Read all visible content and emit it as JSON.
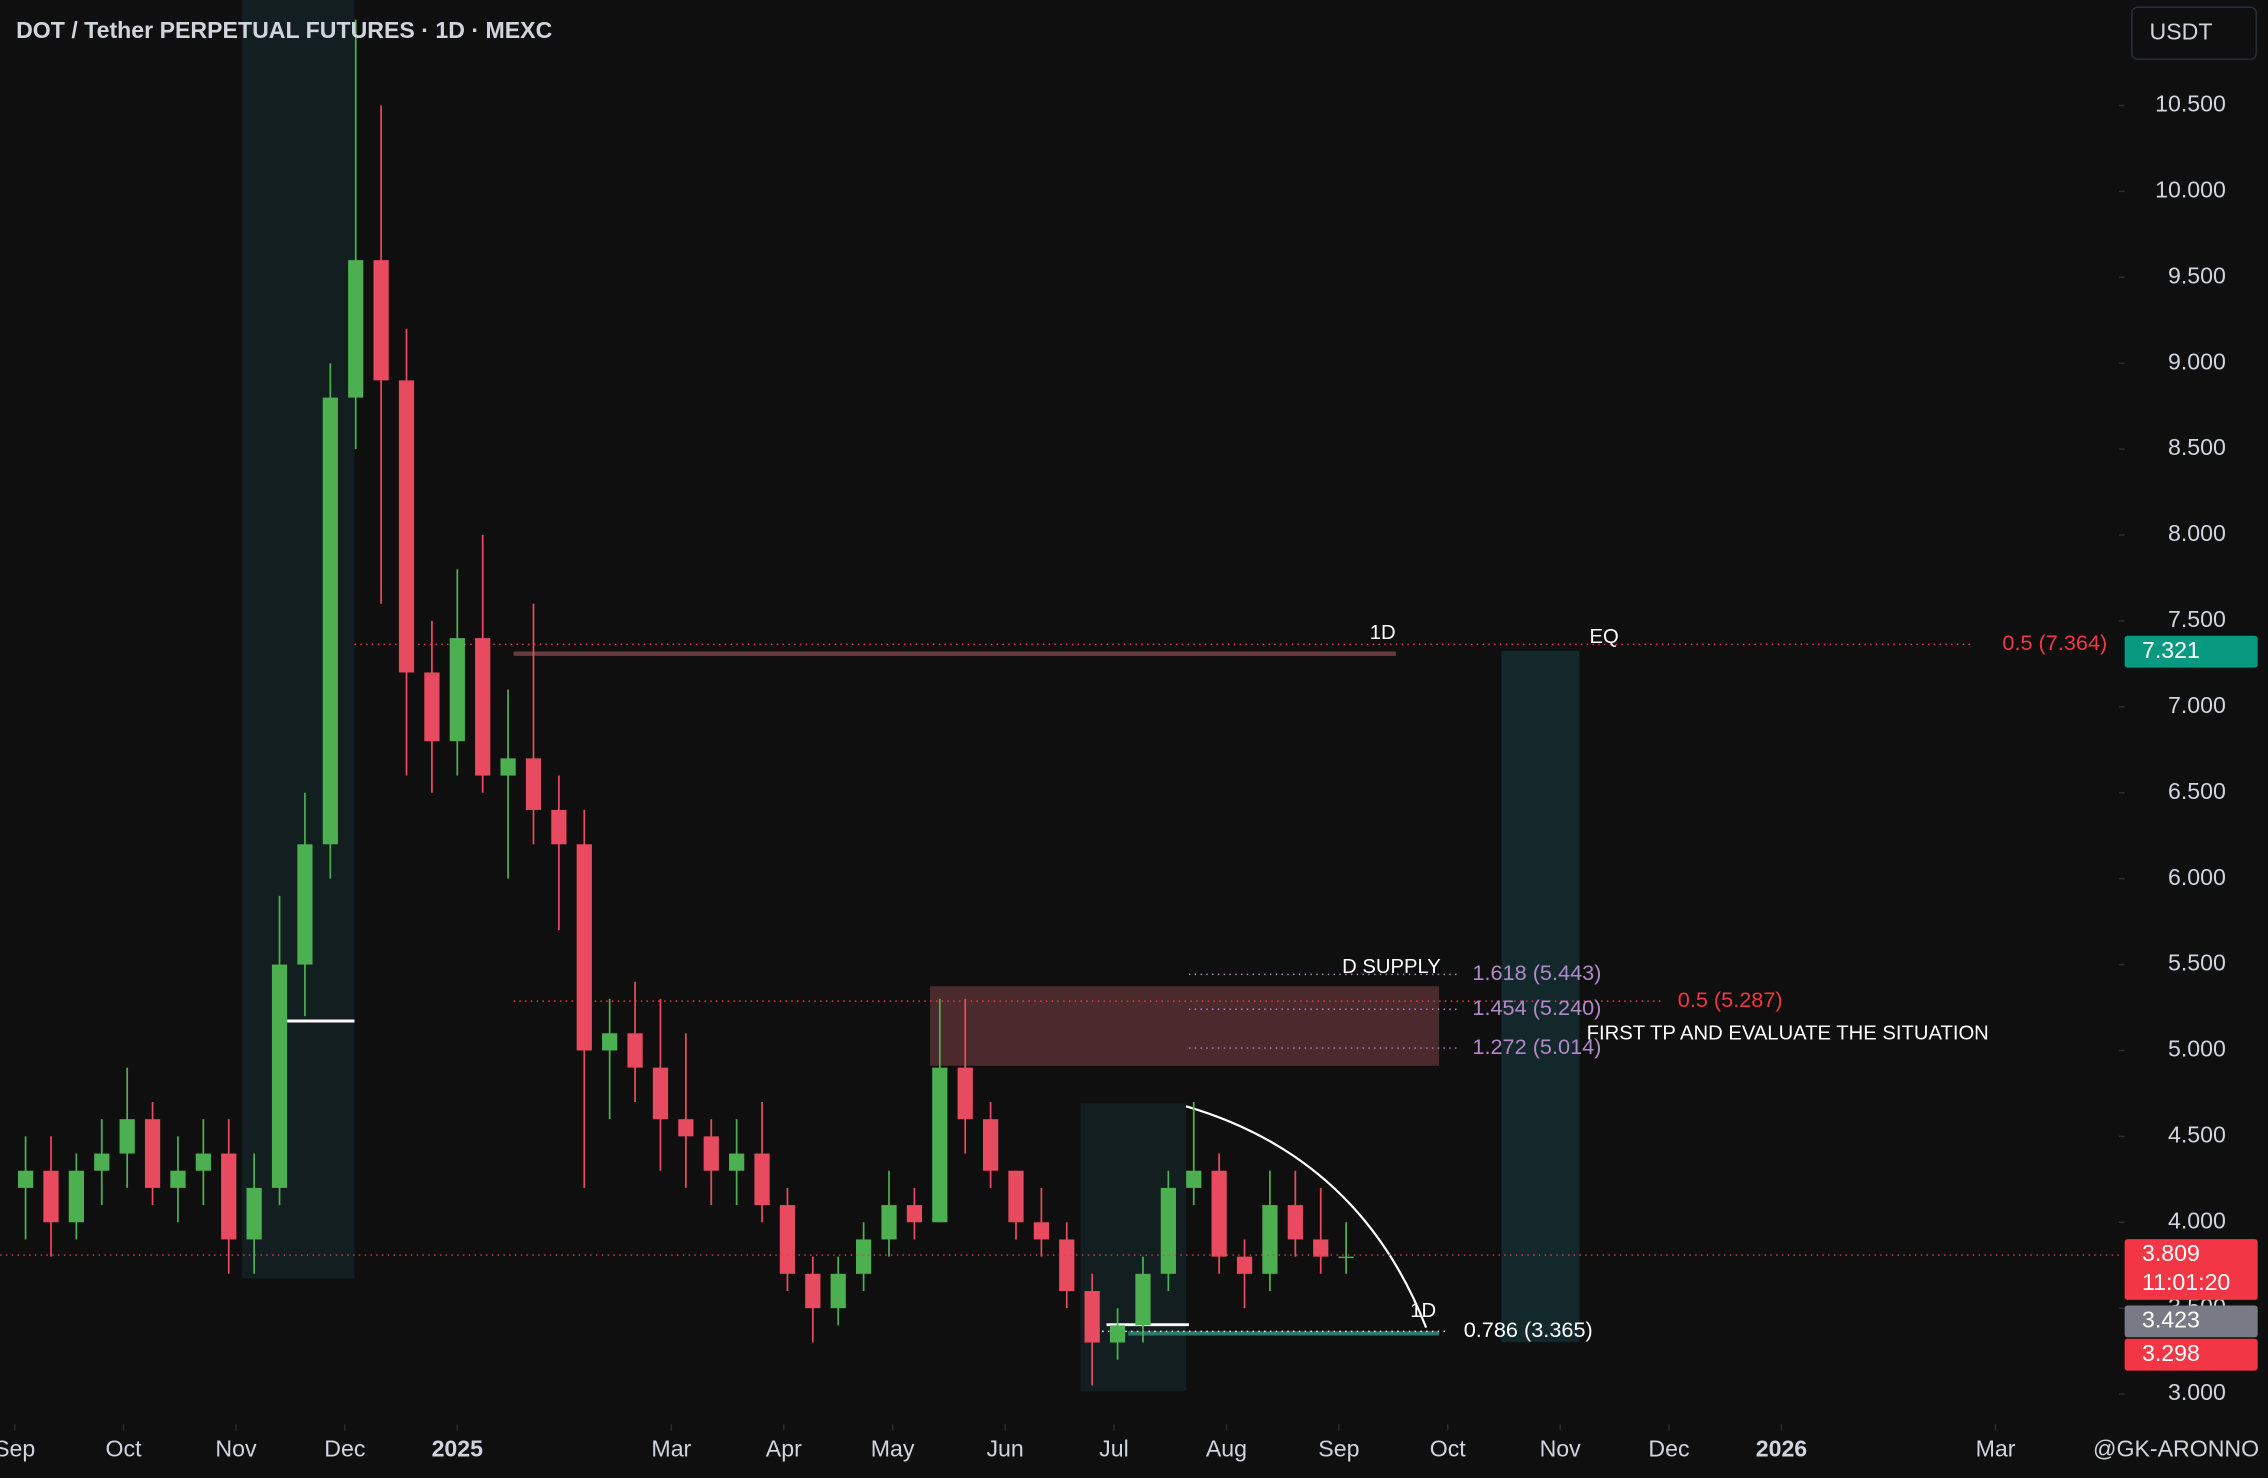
{
  "chart_data": {
    "type": "candlestick",
    "title": "DOT / Tether PERPETUAL FUTURES · 1D · MEXC",
    "currency": "USDT",
    "watermark": "@GK-ARONNO",
    "up_color": "#4caf50",
    "down_color": "#e84a5f",
    "x": [
      3,
      10,
      17,
      24,
      31,
      38,
      45,
      52,
      59,
      66,
      73,
      80,
      87,
      94,
      101,
      108,
      115,
      122,
      129,
      136,
      143,
      150,
      157,
      164,
      171,
      178,
      185,
      192,
      199,
      206,
      213,
      220,
      227,
      234,
      241,
      248,
      255,
      262,
      269,
      276,
      283,
      290,
      297,
      304,
      311,
      318,
      325,
      332,
      339,
      346,
      353,
      360,
      367
    ],
    "open": [
      4.2,
      4.3,
      4.0,
      4.3,
      4.4,
      4.6,
      4.2,
      4.3,
      4.4,
      3.9,
      4.2,
      5.5,
      6.2,
      8.8,
      9.6,
      8.9,
      7.2,
      6.8,
      7.4,
      6.6,
      6.7,
      6.4,
      6.2,
      5.0,
      5.1,
      4.9,
      4.6,
      4.5,
      4.3,
      4.4,
      4.1,
      3.7,
      3.5,
      3.7,
      3.9,
      4.1,
      4.0,
      4.9,
      4.6,
      4.3,
      4.0,
      3.9,
      3.6,
      3.3,
      3.4,
      3.7,
      4.2,
      4.3,
      3.8,
      3.7,
      4.1,
      3.9,
      3.8
    ],
    "high": [
      4.5,
      4.5,
      4.4,
      4.6,
      4.9,
      4.7,
      4.5,
      4.6,
      4.6,
      4.4,
      5.9,
      6.5,
      9.0,
      11.0,
      10.5,
      9.2,
      7.5,
      7.8,
      8.0,
      7.1,
      7.6,
      6.6,
      6.4,
      5.3,
      5.4,
      5.3,
      5.1,
      4.6,
      4.6,
      4.7,
      4.2,
      3.8,
      3.8,
      4.0,
      4.3,
      4.2,
      5.3,
      5.3,
      4.7,
      4.3,
      4.2,
      4.0,
      3.7,
      3.5,
      3.8,
      4.3,
      4.7,
      4.4,
      3.9,
      4.3,
      4.3,
      4.2,
      4.0
    ],
    "low": [
      3.9,
      3.8,
      3.9,
      4.1,
      4.2,
      4.1,
      4.0,
      4.1,
      3.7,
      3.7,
      4.1,
      5.2,
      6.0,
      8.5,
      7.6,
      6.6,
      6.5,
      6.6,
      6.5,
      6.0,
      6.2,
      5.7,
      4.2,
      4.6,
      4.7,
      4.3,
      4.2,
      4.1,
      4.1,
      4.0,
      3.6,
      3.3,
      3.4,
      3.6,
      3.8,
      3.9,
      4.0,
      4.4,
      4.2,
      3.9,
      3.8,
      3.5,
      3.05,
      3.2,
      3.3,
      3.6,
      4.1,
      3.7,
      3.5,
      3.6,
      3.8,
      3.7,
      3.7
    ],
    "close": [
      4.3,
      4.0,
      4.3,
      4.4,
      4.6,
      4.2,
      4.3,
      4.4,
      3.9,
      4.2,
      5.5,
      6.2,
      8.8,
      9.6,
      8.9,
      7.2,
      6.8,
      7.4,
      6.6,
      6.7,
      6.4,
      6.2,
      5.0,
      5.1,
      4.9,
      4.6,
      4.5,
      4.3,
      4.4,
      4.1,
      3.7,
      3.5,
      3.7,
      3.9,
      4.1,
      4.0,
      4.9,
      4.6,
      4.3,
      4.0,
      3.9,
      3.6,
      3.3,
      3.4,
      3.7,
      4.2,
      4.3,
      3.8,
      3.7,
      4.1,
      3.9,
      3.8,
      3.8
    ],
    "xlim": [
      -4,
      580
    ],
    "xticks": [
      {
        "value": 0,
        "label": "Sep"
      },
      {
        "value": 30,
        "label": "Oct"
      },
      {
        "value": 61,
        "label": "Nov"
      },
      {
        "value": 91,
        "label": "Dec"
      },
      {
        "value": 122,
        "label": "2025"
      },
      {
        "value": 181,
        "label": "Mar"
      },
      {
        "value": 212,
        "label": "Apr"
      },
      {
        "value": 242,
        "label": "May"
      },
      {
        "value": 273,
        "label": "Jun"
      },
      {
        "value": 303,
        "label": "Jul"
      },
      {
        "value": 334,
        "label": "Aug"
      },
      {
        "value": 365,
        "label": "Sep"
      },
      {
        "value": 395,
        "label": "Oct"
      },
      {
        "value": 426,
        "label": "Nov"
      },
      {
        "value": 456,
        "label": "Dec"
      },
      {
        "value": 487,
        "label": "2026"
      },
      {
        "value": 546,
        "label": "Mar"
      }
    ],
    "ylim": [
      2.823,
      11.114
    ],
    "yticks": [
      {
        "value": 3,
        "label": "3.000"
      },
      {
        "value": 3.5,
        "label": "3.500"
      },
      {
        "value": 4,
        "label": "4.000"
      },
      {
        "value": 4.5,
        "label": "4.500"
      },
      {
        "value": 5,
        "label": "5.000"
      },
      {
        "value": 5.5,
        "label": "5.500"
      },
      {
        "value": 6,
        "label": "6.000"
      },
      {
        "value": 6.5,
        "label": "6.500"
      },
      {
        "value": 7,
        "label": "7.000"
      },
      {
        "value": 7.5,
        "label": "7.500"
      },
      {
        "value": 8,
        "label": "8.000"
      },
      {
        "value": 8.5,
        "label": "8.500"
      },
      {
        "value": 9,
        "label": "9.000"
      },
      {
        "value": 9.5,
        "label": "9.500"
      },
      {
        "value": 10,
        "label": "10.000"
      },
      {
        "value": 10.5,
        "label": "10.500"
      }
    ],
    "levels": [
      {
        "label": "0.5 (7.364)",
        "value": 7.364,
        "color": "#f23645"
      },
      {
        "label": "0.5 (5.287)",
        "value": 5.287,
        "color": "#f23645"
      },
      {
        "label": "1.618 (5.443)",
        "value": 5.443,
        "color": "#b388c9"
      },
      {
        "label": "1.454 (5.240)",
        "value": 5.24,
        "color": "#b388c9"
      },
      {
        "label": "1.272 (5.014)",
        "value": 5.014,
        "color": "#b388c9"
      },
      {
        "label": "0.786 (3.365)",
        "value": 3.365,
        "color": "#ffffff"
      }
    ],
    "annotations": [
      "D SUPPLY",
      "FIRST TP AND EVALUATE THE SITUATION",
      "1D",
      "1D",
      "EQ"
    ],
    "price_labels": [
      {
        "value": 7.321,
        "color": "#089981"
      },
      {
        "value": 3.809,
        "color": "#f23645",
        "timer": "11:01:20"
      },
      {
        "value": 3.423,
        "color": "#787b86"
      },
      {
        "value": 3.298,
        "color": "#f23645"
      }
    ]
  }
}
